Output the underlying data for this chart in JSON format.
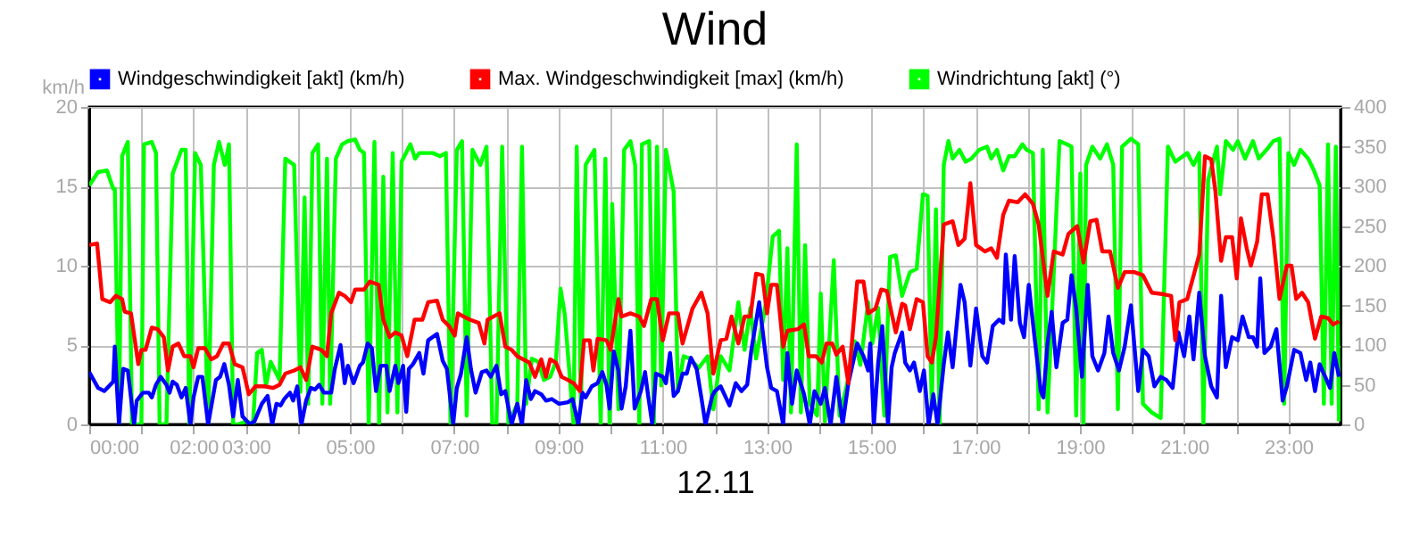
{
  "chart_data": {
    "type": "line",
    "title": "Wind",
    "xlabel": "12.11",
    "ylabel": "km/h",
    "xlim": [
      0,
      24
    ],
    "xticks": [
      {
        "value": 0,
        "label": "00:00"
      },
      {
        "value": 1,
        "label": null
      },
      {
        "value": 2,
        "label": "02:00"
      },
      {
        "value": 3,
        "label": "03:00"
      },
      {
        "value": 4,
        "label": null
      },
      {
        "value": 5,
        "label": "05:00"
      },
      {
        "value": 6,
        "label": null
      },
      {
        "value": 7,
        "label": "07:00"
      },
      {
        "value": 8,
        "label": null
      },
      {
        "value": 9,
        "label": "09:00"
      },
      {
        "value": 10,
        "label": null
      },
      {
        "value": 11,
        "label": "11:00"
      },
      {
        "value": 12,
        "label": null
      },
      {
        "value": 13,
        "label": "13:00"
      },
      {
        "value": 14,
        "label": null
      },
      {
        "value": 15,
        "label": "15:00"
      },
      {
        "value": 16,
        "label": null
      },
      {
        "value": 17,
        "label": "17:00"
      },
      {
        "value": 18,
        "label": null
      },
      {
        "value": 19,
        "label": "19:00"
      },
      {
        "value": 20,
        "label": null
      },
      {
        "value": 21,
        "label": "21:00"
      },
      {
        "value": 22,
        "label": null
      },
      {
        "value": 23,
        "label": "23:00"
      }
    ],
    "ylim": [
      0,
      20
    ],
    "yticks": [
      0,
      5,
      10,
      15,
      20
    ],
    "y2lim": [
      0,
      400
    ],
    "y2ticks": [
      0,
      50,
      100,
      150,
      200,
      250,
      300,
      350,
      400
    ],
    "grid": true,
    "legend": "top",
    "series": [
      {
        "name": "Windgeschwindigkeit [akt] (km/h)",
        "color": "#0000ff",
        "x": [
          0,
          0.17,
          0.29,
          0.46,
          0.49,
          0.57,
          0.65,
          0.74,
          0.86,
          0.91,
          1.03,
          1.14,
          1.2,
          1.28,
          1.37,
          1.48,
          1.54,
          1.6,
          1.68,
          1.77,
          1.85,
          1.94,
          2.0,
          2.09,
          2.17,
          2.28,
          2.43,
          2.51,
          2.59,
          2.68,
          2.76,
          2.85,
          2.94,
          3.08,
          3.17,
          3.31,
          3.42,
          3.51,
          3.59,
          3.67,
          3.74,
          3.85,
          3.91,
          3.99,
          4.07,
          4.16,
          4.25,
          4.33,
          4.41,
          4.5,
          4.64,
          4.71,
          4.82,
          4.9,
          4.96,
          5.07,
          5.19,
          5.25,
          5.34,
          5.42,
          5.5,
          5.59,
          5.7,
          5.76,
          5.87,
          5.93,
          6.02,
          6.08,
          6.13,
          6.21,
          6.33,
          6.41,
          6.5,
          6.67,
          6.78,
          6.86,
          6.98,
          7.05,
          7.13,
          7.24,
          7.32,
          7.41,
          7.53,
          7.62,
          7.7,
          7.81,
          7.9,
          7.98,
          8.1,
          8.21,
          8.3,
          8.38,
          8.47,
          8.55,
          8.67,
          8.76,
          8.87,
          9.01,
          9.18,
          9.27,
          9.38,
          9.46,
          9.52,
          9.64,
          9.75,
          9.84,
          9.92,
          9.98,
          10.06,
          10.15,
          10.21,
          10.29,
          10.38,
          10.46,
          10.58,
          10.66,
          10.72,
          10.8,
          10.87,
          11.0,
          11.06,
          11.14,
          11.21,
          11.29,
          11.38,
          11.46,
          11.54,
          11.65,
          11.74,
          11.82,
          11.95,
          12.0,
          12.11,
          12.28,
          12.4,
          12.51,
          12.62,
          12.7,
          12.85,
          13.0,
          13.08,
          13.19,
          13.31,
          13.39,
          13.48,
          13.57,
          13.71,
          13.82,
          13.91,
          14.03,
          14.11,
          14.22,
          14.33,
          14.45,
          14.56,
          14.73,
          14.85,
          14.94,
          14.98,
          15.05,
          15.13,
          15.21,
          15.32,
          15.39,
          15.45,
          15.59,
          15.65,
          15.74,
          15.82,
          15.93,
          16.01,
          16.1,
          16.19,
          16.27,
          16.39,
          16.47,
          16.56,
          16.71,
          16.79,
          16.9,
          17.01,
          17.13,
          17.22,
          17.33,
          17.45,
          17.53,
          17.58,
          17.68,
          17.75,
          17.85,
          17.93,
          18.02,
          18.13,
          18.25,
          18.3,
          18.38,
          18.46,
          18.55,
          18.67,
          18.76,
          18.84,
          18.93,
          19.04,
          19.15,
          19.24,
          19.35,
          19.47,
          19.55,
          19.64,
          19.75,
          19.86,
          19.98,
          20.12,
          20.21,
          20.32,
          20.43,
          20.55,
          20.66,
          20.78,
          20.89,
          21.0,
          21.1,
          21.18,
          21.29,
          21.4,
          21.52,
          21.63,
          21.71,
          21.8,
          21.92,
          22.03,
          22.12,
          22.24,
          22.32,
          22.4,
          22.46,
          22.54,
          22.66,
          22.77,
          22.89,
          22.97,
          23.11,
          23.23,
          23.34,
          23.42,
          23.51,
          23.6,
          23.68,
          23.8,
          23.88,
          23.97
        ],
        "values": [
          3.3,
          2.3,
          2.1,
          2.7,
          4.9,
          0,
          3.5,
          3.4,
          0,
          1.5,
          2,
          2,
          1.7,
          2.5,
          3,
          2.5,
          2,
          2.7,
          2.5,
          1.7,
          2.3,
          0,
          1.7,
          3,
          3,
          0,
          2.8,
          3,
          3.8,
          2.5,
          0.5,
          2.8,
          0.5,
          0,
          0.2,
          1.3,
          1.8,
          0,
          1.3,
          1.2,
          1.6,
          2,
          1.5,
          2.4,
          0,
          1.5,
          2.3,
          2.2,
          2.5,
          2,
          2,
          3.5,
          5,
          2.6,
          3.7,
          2.6,
          3.7,
          3.9,
          5.1,
          4.8,
          2.1,
          3.7,
          3.7,
          2.1,
          3.7,
          2.6,
          3.7,
          0.8,
          3.5,
          3.8,
          4.5,
          3.2,
          5.3,
          5.7,
          4,
          3.5,
          0,
          2.3,
          3.2,
          5.5,
          3.5,
          2,
          3.3,
          3.4,
          3,
          3.7,
          1.9,
          2.1,
          0,
          1.3,
          0,
          2.8,
          1.6,
          2.1,
          1.9,
          1.5,
          1.6,
          1.3,
          1.4,
          1.6,
          0,
          2,
          1.7,
          2.4,
          2.6,
          3.3,
          2.5,
          1,
          4.6,
          3.4,
          1,
          2.4,
          5.9,
          1,
          2.1,
          3.3,
          1.8,
          0,
          3.2,
          3,
          2.6,
          4.5,
          1.8,
          2.1,
          3.2,
          3.2,
          4.2,
          3.5,
          1.7,
          0,
          1.8,
          2.1,
          2.4,
          1.2,
          2.6,
          2.1,
          2.5,
          4.7,
          7.7,
          3.6,
          2.3,
          2.1,
          0,
          4.5,
          1.3,
          3.4,
          1.9,
          0,
          2.1,
          1.3,
          2.3,
          0,
          3.0,
          0,
          2.6,
          5.1,
          4.3,
          3.4,
          5.1,
          0,
          3.8,
          6.2,
          0,
          3.6,
          4.5,
          5.8,
          3.9,
          3.4,
          3.9,
          2.1,
          3.4,
          0,
          1.9,
          0,
          3.8,
          5.8,
          3.6,
          8.8,
          7.7,
          3.7,
          7.3,
          4.3,
          3.9,
          6.2,
          6.6,
          6.4,
          10.7,
          6.6,
          10.6,
          6.4,
          5.5,
          8.8,
          5.5,
          2.1,
          1.7,
          5.1,
          7.1,
          3.6,
          6.4,
          6.6,
          9.4,
          7.3,
          3.0,
          8.8,
          4.3,
          3.4,
          4.5,
          6.8,
          4.5,
          3.4,
          4.9,
          7.5,
          2.1,
          4.7,
          4.3,
          2.4,
          3.0,
          2.8,
          2.3,
          5.8,
          4.3,
          6.8,
          4.1,
          8.3,
          4.3,
          2.4,
          1.7,
          8.1,
          3.6,
          5.5,
          5.3,
          6.8,
          5.5,
          5.5,
          4.9,
          9.2,
          4.5,
          4.9,
          6.0,
          1.5,
          2.4,
          4.7,
          4.5,
          2.8,
          3.9,
          2.1,
          3.8,
          3.2,
          2.3,
          4.5,
          3.0
        ]
      },
      {
        "name": "Max. Windgeschwindigkeit [max] (km/h)",
        "color": "#ff0000",
        "x": [
          0,
          0.15,
          0.25,
          0.4,
          0.51,
          0.63,
          0.68,
          0.8,
          0.94,
          1.0,
          1.08,
          1.2,
          1.31,
          1.43,
          1.51,
          1.6,
          1.71,
          1.82,
          1.94,
          2.0,
          2.09,
          2.22,
          2.34,
          2.45,
          2.57,
          2.68,
          2.79,
          2.94,
          3.06,
          3.19,
          3.36,
          3.53,
          3.65,
          3.76,
          3.93,
          4.05,
          4.16,
          4.28,
          4.45,
          4.56,
          4.64,
          4.79,
          4.9,
          5.02,
          5.1,
          5.27,
          5.38,
          5.55,
          5.64,
          5.76,
          5.87,
          5.99,
          6.1,
          6.24,
          6.39,
          6.5,
          6.67,
          6.78,
          6.9,
          7.01,
          7.07,
          7.18,
          7.3,
          7.47,
          7.58,
          7.64,
          7.87,
          7.98,
          8.1,
          8.21,
          8.32,
          8.44,
          8.55,
          8.67,
          8.76,
          8.84,
          8.95,
          9.06,
          9.18,
          9.29,
          9.41,
          9.49,
          9.6,
          9.67,
          9.75,
          9.92,
          10.0,
          10.15,
          10.21,
          10.38,
          10.55,
          10.64,
          10.78,
          10.89,
          11.0,
          11.12,
          11.29,
          11.38,
          11.57,
          11.74,
          11.86,
          11.97,
          12.11,
          12.22,
          12.32,
          12.45,
          12.57,
          12.68,
          12.79,
          12.91,
          13.0,
          13.08,
          13.19,
          13.31,
          13.39,
          13.59,
          13.71,
          13.8,
          13.94,
          14.05,
          14.14,
          14.25,
          14.33,
          14.45,
          14.56,
          14.73,
          14.85,
          14.94,
          15.08,
          15.19,
          15.3,
          15.39,
          15.47,
          15.59,
          15.65,
          15.74,
          15.87,
          15.99,
          16.08,
          16.16,
          16.24,
          16.39,
          16.56,
          16.67,
          16.79,
          16.9,
          17.01,
          17.18,
          17.3,
          17.41,
          17.53,
          17.64,
          17.81,
          17.95,
          18.1,
          18.21,
          18.38,
          18.5,
          18.67,
          18.78,
          18.95,
          19.07,
          19.2,
          19.32,
          19.43,
          19.58,
          19.73,
          19.86,
          20.04,
          20.21,
          20.38,
          20.61,
          20.75,
          20.83,
          20.91,
          21.06,
          21.29,
          21.4,
          21.52,
          21.6,
          21.71,
          21.8,
          21.92,
          22.01,
          22.09,
          22.2,
          22.28,
          22.4,
          22.49,
          22.6,
          22.71,
          22.83,
          22.97,
          23.06,
          23.15,
          23.26,
          23.38,
          23.51,
          23.63,
          23.76,
          23.86,
          23.97
        ],
        "values": [
          11.3,
          11.4,
          7.9,
          7.7,
          8.1,
          7.9,
          7.1,
          7.0,
          3.8,
          4.7,
          4.7,
          6.1,
          6.0,
          5.5,
          3.4,
          4.9,
          5.1,
          4.3,
          4.3,
          3.6,
          4.8,
          4.8,
          4.1,
          4.3,
          5.1,
          5.1,
          3.8,
          3.6,
          1.9,
          2.4,
          2.4,
          2.3,
          2.5,
          3.2,
          3.4,
          3.6,
          2.8,
          4.9,
          4.7,
          4.3,
          7.0,
          8.3,
          8.1,
          7.7,
          8.5,
          8.5,
          9.0,
          8.8,
          6.6,
          5.5,
          5.8,
          5.6,
          4.3,
          6.6,
          6.6,
          7.7,
          7.8,
          6.6,
          6.2,
          5.6,
          7.0,
          6.8,
          6.6,
          6.4,
          5.1,
          6.6,
          7.0,
          4.9,
          4.7,
          4.3,
          4.1,
          3.9,
          3.0,
          4.1,
          3.0,
          4.1,
          3.9,
          3.0,
          2.8,
          2.6,
          2.1,
          5.3,
          5.3,
          3.4,
          5.4,
          5.3,
          4.7,
          7.9,
          6.8,
          7.0,
          6.8,
          6.2,
          7.9,
          7.9,
          5.3,
          7.0,
          7.0,
          5.1,
          7.3,
          8.3,
          7.0,
          3.2,
          5.3,
          5.4,
          6.8,
          5.1,
          6.8,
          6.8,
          9.5,
          9.4,
          7.0,
          8.8,
          8.8,
          4.9,
          5.9,
          6.0,
          6.3,
          4.3,
          4.3,
          3.9,
          5.1,
          5.1,
          4.4,
          4.9,
          2.6,
          9.0,
          9.0,
          7.0,
          7.3,
          8.5,
          8.4,
          7.0,
          5.8,
          7.6,
          7.5,
          6.0,
          7.9,
          7.7,
          4.3,
          3.9,
          5.5,
          12.6,
          12.8,
          11.3,
          11.7,
          15.2,
          11.3,
          10.9,
          11.1,
          10.5,
          13.2,
          14.1,
          14.0,
          14.5,
          13.9,
          12.6,
          8.1,
          10.9,
          10.7,
          12.0,
          12.5,
          10.2,
          12.8,
          12.9,
          10.9,
          10.9,
          8.6,
          9.6,
          9.6,
          9.4,
          8.3,
          8.2,
          8.1,
          5.3,
          7.7,
          7.9,
          10.7,
          16.9,
          16.7,
          14.7,
          10.3,
          11.8,
          11.8,
          9.2,
          13.0,
          11.1,
          10.0,
          11.5,
          14.5,
          14.5,
          11.8,
          7.9,
          10.0,
          10.0,
          7.9,
          8.3,
          7.7,
          5.4,
          6.8,
          6.7,
          6.3,
          6.5
        ]
      },
      {
        "name": "Windrichtung [akt] (°)",
        "color": "#00ff00",
        "axis": "y2",
        "x": [
          0,
          0.17,
          0.34,
          0.46,
          0.49,
          0.57,
          0.63,
          0.74,
          0.82,
          1.0,
          1.05,
          1.2,
          1.28,
          1.35,
          1.48,
          1.6,
          1.77,
          1.85,
          1.92,
          2.03,
          2.14,
          2.28,
          2.39,
          2.49,
          2.6,
          2.68,
          2.76,
          2.85,
          3.02,
          3.14,
          3.22,
          3.31,
          3.39,
          3.48,
          3.65,
          3.76,
          3.93,
          4.05,
          4.13,
          4.2,
          4.28,
          4.39,
          4.47,
          4.56,
          4.62,
          4.73,
          4.85,
          4.96,
          5.1,
          5.19,
          5.27,
          5.36,
          5.47,
          5.56,
          5.64,
          5.72,
          5.82,
          5.91,
          5.99,
          6.16,
          6.25,
          6.33,
          6.44,
          6.59,
          6.73,
          6.84,
          6.93,
          7.05,
          7.15,
          7.24,
          7.35,
          7.5,
          7.62,
          7.73,
          7.81,
          7.92,
          8.04,
          8.21,
          8.3,
          8.38,
          8.49,
          8.61,
          8.72,
          8.84,
          8.95,
          9.04,
          9.12,
          9.29,
          9.35,
          9.43,
          9.52,
          9.69,
          9.81,
          9.9,
          9.98,
          10.03,
          10.15,
          10.26,
          10.38,
          10.47,
          10.55,
          10.6,
          10.74,
          10.83,
          10.89,
          10.97,
          11.06,
          11.21,
          11.29,
          11.4,
          11.52,
          11.69,
          11.86,
          11.97,
          12.11,
          12.28,
          12.45,
          12.57,
          12.68,
          12.79,
          12.97,
          13.11,
          13.23,
          13.31,
          13.39,
          13.46,
          13.57,
          13.65,
          13.73,
          13.82,
          13.96,
          14.03,
          14.11,
          14.28,
          14.39,
          14.53,
          14.68,
          14.79,
          14.94,
          15.02,
          15.13,
          15.25,
          15.36,
          15.47,
          15.59,
          15.74,
          15.87,
          15.99,
          16.08,
          16.16,
          16.24,
          16.31,
          16.39,
          16.48,
          16.56,
          16.69,
          16.81,
          16.92,
          17.07,
          17.22,
          17.3,
          17.41,
          17.53,
          17.64,
          17.75,
          17.9,
          17.98,
          18.1,
          18.21,
          18.29,
          18.38,
          18.5,
          18.61,
          18.75,
          18.84,
          18.93,
          19.01,
          19.07,
          19.12,
          19.24,
          19.39,
          19.52,
          19.64,
          19.73,
          19.81,
          19.98,
          20.12,
          20.21,
          20.38,
          20.55,
          20.69,
          20.83,
          21.06,
          21.18,
          21.29,
          21.37,
          21.46,
          21.63,
          21.69,
          21.8,
          21.94,
          22.03,
          22.17,
          22.32,
          22.43,
          22.58,
          22.71,
          22.83,
          22.92,
          23.0,
          23.11,
          23.23,
          23.38,
          23.49,
          23.6,
          23.68,
          23.76,
          23.83,
          23.91,
          23.97
        ],
        "values": [
          301,
          318,
          320,
          297,
          297,
          0,
          338,
          356,
          0,
          0,
          353,
          356,
          342,
          0,
          0,
          316,
          346,
          346,
          0,
          342,
          327,
          0,
          327,
          356,
          327,
          353,
          0,
          0,
          4,
          0,
          90,
          94,
          49,
          79,
          56,
          335,
          327,
          41,
          286,
          26,
          342,
          353,
          26,
          335,
          26,
          335,
          353,
          357,
          359,
          346,
          342,
          0,
          356,
          0,
          312,
          15,
          342,
          15,
          331,
          353,
          335,
          342,
          342,
          342,
          338,
          342,
          0,
          346,
          357,
          11,
          346,
          327,
          350,
          0,
          0,
          350,
          0,
          26,
          350,
          26,
          83,
          79,
          56,
          60,
          79,
          171,
          139,
          0,
          350,
          26,
          327,
          346,
          0,
          335,
          0,
          278,
          19,
          346,
          357,
          327,
          0,
          353,
          357,
          0,
          350,
          49,
          346,
          293,
          41,
          86,
          83,
          71,
          86,
          19,
          86,
          68,
          154,
          94,
          147,
          83,
          150,
          237,
          244,
          56,
          222,
          15,
          353,
          15,
          226,
          26,
          11,
          165,
          4,
          207,
          11,
          49,
          105,
          75,
          154,
          102,
          147,
          11,
          211,
          213,
          162,
          192,
          196,
          290,
          288,
          19,
          271,
          0,
          327,
          357,
          335,
          346,
          331,
          335,
          346,
          350,
          335,
          346,
          320,
          338,
          338,
          353,
          346,
          342,
          19,
          346,
          15,
          192,
          357,
          353,
          350,
          11,
          316,
          0,
          327,
          350,
          335,
          353,
          327,
          19,
          350,
          360,
          353,
          26,
          15,
          8,
          350,
          331,
          342,
          327,
          342,
          0,
          308,
          350,
          290,
          357,
          346,
          357,
          335,
          357,
          335,
          346,
          357,
          360,
          26,
          342,
          327,
          346,
          335,
          320,
          301,
          26,
          353,
          26,
          350,
          4
        ]
      }
    ]
  }
}
